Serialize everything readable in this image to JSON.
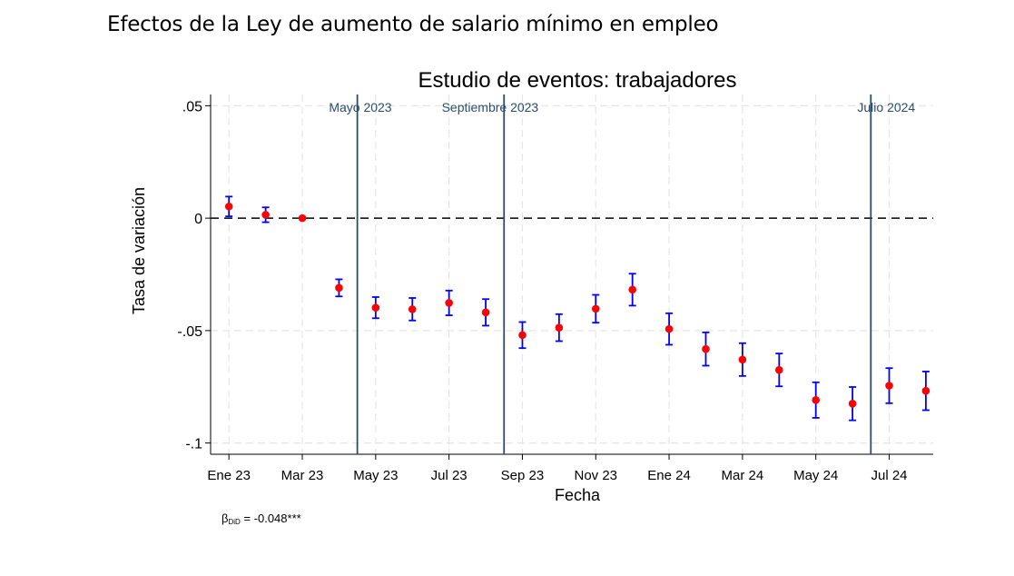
{
  "heading": "Efectos de la Ley de aumento de salario mínimo en empleo",
  "colors": {
    "point": "#ff0000",
    "errorbar": "#0000ff",
    "event_line": "#2a4d6e",
    "grid": "#e6e6e6",
    "zero_line": "#000000"
  },
  "chart_data": {
    "type": "scatter",
    "title": "Estudio de eventos: trabajadores",
    "xlabel": "Fecha",
    "ylabel": "Tasa de variación",
    "ylim": [
      -0.105,
      0.055
    ],
    "xlim": [
      -0.5,
      19.2
    ],
    "yticks": [
      {
        "value": 0.05,
        "label": ".05"
      },
      {
        "value": 0,
        "label": "0"
      },
      {
        "value": -0.05,
        "label": "-.05"
      },
      {
        "value": -0.1,
        "label": "-.1"
      }
    ],
    "xticks": [
      {
        "index": 0,
        "label": "Ene 23"
      },
      {
        "index": 2,
        "label": "Mar 23"
      },
      {
        "index": 4,
        "label": "May 23"
      },
      {
        "index": 6,
        "label": "Jul 23"
      },
      {
        "index": 8,
        "label": "Sep 23"
      },
      {
        "index": 10,
        "label": "Nov 23"
      },
      {
        "index": 12,
        "label": "Ene 24"
      },
      {
        "index": 14,
        "label": "Mar 24"
      },
      {
        "index": 16,
        "label": "May 24"
      },
      {
        "index": 18,
        "label": "Jul 24"
      }
    ],
    "grid": true,
    "zero_line": "dashed",
    "months": [
      "Ene 23",
      "Feb 23",
      "Mar 23",
      "Abr 23",
      "May 23",
      "Jun 23",
      "Jul 23",
      "Ago 23",
      "Sep 23",
      "Oct 23",
      "Nov 23",
      "Dic 23",
      "Ene 24",
      "Feb 24",
      "Mar 24",
      "Abr 24",
      "May 24",
      "Jun 24",
      "Jul 24",
      "Ago 24"
    ],
    "estimates": [
      0.0052,
      0.0015,
      0.0,
      -0.031,
      -0.0398,
      -0.0405,
      -0.0377,
      -0.0419,
      -0.052,
      -0.0487,
      -0.0403,
      -0.0318,
      -0.0493,
      -0.0582,
      -0.0629,
      -0.0675,
      -0.0809,
      -0.0825,
      -0.0745,
      -0.0768
    ],
    "ci_low": [
      0.0008,
      -0.0018,
      null,
      -0.0348,
      -0.0445,
      -0.0455,
      -0.0432,
      -0.0478,
      -0.0578,
      -0.0547,
      -0.0465,
      -0.0389,
      -0.0563,
      -0.0656,
      -0.0702,
      -0.0748,
      -0.0888,
      -0.0899,
      -0.0823,
      -0.0854
    ],
    "ci_high": [
      0.0096,
      0.0048,
      null,
      -0.0272,
      -0.0351,
      -0.0355,
      -0.0322,
      -0.036,
      -0.0462,
      -0.0427,
      -0.0341,
      -0.0247,
      -0.0423,
      -0.0508,
      -0.0556,
      -0.0602,
      -0.073,
      -0.0751,
      -0.0667,
      -0.0682
    ],
    "events": [
      {
        "position": 3.5,
        "label": "Mayo 2023"
      },
      {
        "position": 7.5,
        "label": "Septiembre 2023"
      },
      {
        "position": 17.5,
        "label": "Julio 2024"
      }
    ]
  },
  "note": {
    "beta": "β",
    "subscript": "DiD",
    "text": " = -0.048***"
  }
}
